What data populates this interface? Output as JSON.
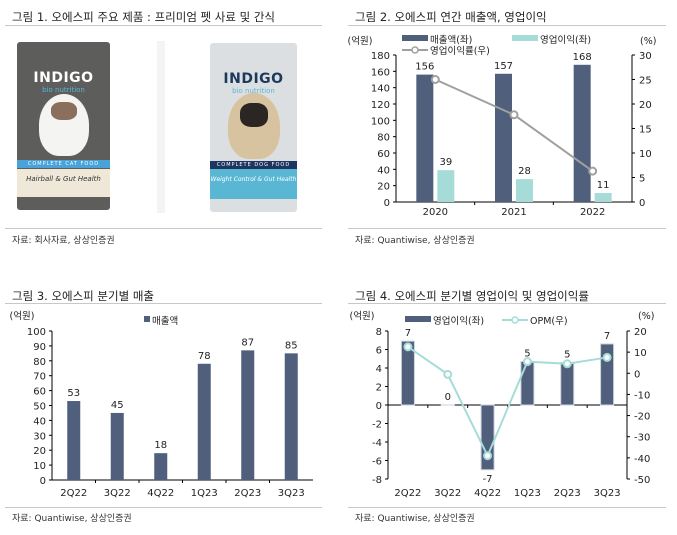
{
  "panel1": {
    "title": "그림 1. 오에스피 주요 제품 : 프리미엄 펫 사료 및 간식",
    "source": "자료: 회사자료, 상상인증권",
    "products": [
      {
        "brand": "INDIGO",
        "sub": "bio nutrition",
        "band": "COMPLETE CAT FOOD",
        "line": "Hairball & Gut Health"
      },
      {
        "brand": "INDIGO",
        "sub": "bio nutrition",
        "band": "COMPLETE DOG FOOD",
        "line": "Weight Control & Gut Health"
      }
    ]
  },
  "panel2": {
    "title": "그림 2. 오에스피 연간 매출액, 영업이익",
    "source": "자료: Quantiwise, 상상인증권"
  },
  "panel3": {
    "title": "그림 3. 오에스피 분기별 매출",
    "source": "자료: Quantiwise, 상상인증권"
  },
  "panel4": {
    "title": "그림 4. 오에스피 분기별 영업이익 및 영업이익률",
    "source": "자료: Quantiwise, 상상인증권"
  },
  "chart_data": [
    {
      "type": "bar+line",
      "categories": [
        "2020",
        "2021",
        "2022"
      ],
      "ylabel": "(억원)",
      "y2label": "(%)",
      "ylim": [
        0,
        180
      ],
      "yticks": [
        0,
        20,
        40,
        60,
        80,
        100,
        120,
        140,
        160,
        180
      ],
      "y2lim": [
        0,
        30
      ],
      "y2ticks": [
        0,
        5,
        10,
        15,
        20,
        25,
        30
      ],
      "series": [
        {
          "name": "매출액(좌)",
          "type": "bar",
          "axis": "left",
          "values": [
            156,
            157,
            168
          ],
          "labels": [
            "156",
            "157",
            "168"
          ],
          "color": "#4f5f7c"
        },
        {
          "name": "영업이익(좌)",
          "type": "bar",
          "axis": "left",
          "values": [
            39,
            28,
            11
          ],
          "labels": [
            "39",
            "28",
            "11"
          ],
          "color": "#a6dcd8"
        },
        {
          "name": "영업이익률(우)",
          "type": "line",
          "axis": "right",
          "values": [
            25.0,
            17.8,
            6.3
          ],
          "color": "#a0a0a0"
        }
      ]
    },
    {
      "type": "bar",
      "categories": [
        "2Q22",
        "3Q22",
        "4Q22",
        "1Q23",
        "2Q23",
        "3Q23"
      ],
      "ylabel": "(억원)",
      "ylim": [
        0,
        100
      ],
      "yticks": [
        0,
        10,
        20,
        30,
        40,
        50,
        60,
        70,
        80,
        90,
        100
      ],
      "series": [
        {
          "name": "매출액",
          "type": "bar",
          "axis": "left",
          "values": [
            53,
            45,
            18,
            78,
            87,
            85
          ],
          "labels": [
            "53",
            "45",
            "18",
            "78",
            "87",
            "85"
          ],
          "color": "#4f5f7c"
        }
      ]
    },
    {
      "type": "bar+line",
      "categories": [
        "2Q22",
        "3Q22",
        "4Q22",
        "1Q23",
        "2Q23",
        "3Q23"
      ],
      "ylabel": "(억원)",
      "y2label": "(%)",
      "ylim": [
        -8,
        8
      ],
      "yticks": [
        -8,
        -6,
        -4,
        -2,
        0,
        2,
        4,
        6,
        8
      ],
      "y2lim": [
        -50,
        20
      ],
      "y2ticks": [
        -50,
        -40,
        -30,
        -20,
        -10,
        0,
        10,
        20
      ],
      "series": [
        {
          "name": "영업이익(좌)",
          "type": "bar",
          "axis": "left",
          "values": [
            6.9,
            0,
            -7,
            4.7,
            4.6,
            6.6
          ],
          "labels": [
            "7",
            "0",
            "-7",
            "5",
            "5",
            "7"
          ],
          "color": "#4f5f7c"
        },
        {
          "name": "OPM(우)",
          "type": "line",
          "axis": "right",
          "values": [
            12.5,
            -0.5,
            -39,
            5.5,
            4.5,
            7.5
          ],
          "color": "#a6dcd8"
        }
      ]
    }
  ]
}
